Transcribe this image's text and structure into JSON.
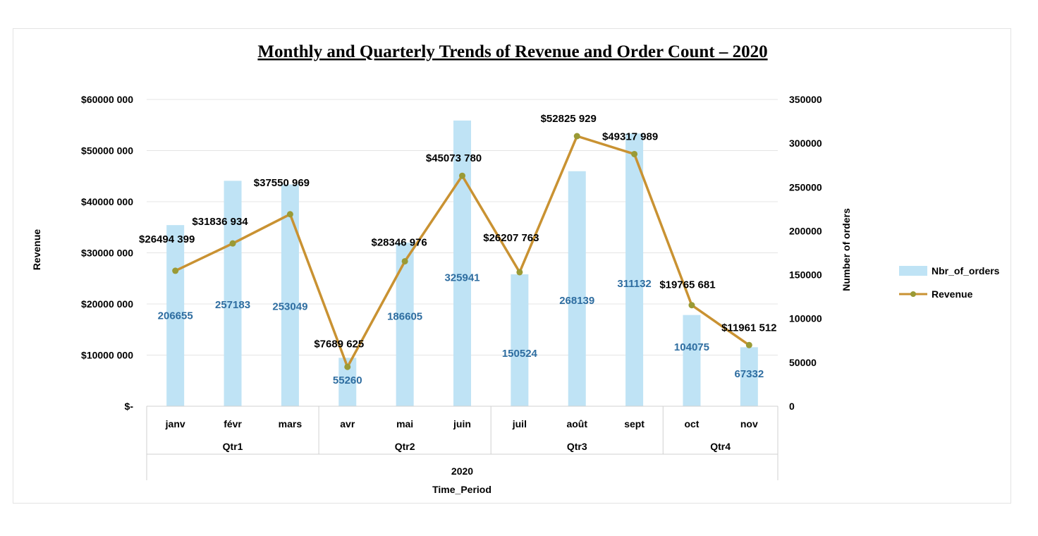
{
  "chart_data": {
    "type": "bar+line",
    "title": "Monthly and Quarterly Trends of Revenue and Order Count – 2020",
    "xlabel": "Time_Period",
    "ylabel_left": "Revenue",
    "ylabel_right": "Number of orders",
    "year": "2020",
    "quarters": [
      {
        "label": "Qtr1",
        "months": 3
      },
      {
        "label": "Qtr2",
        "months": 3
      },
      {
        "label": "Qtr3",
        "months": 3
      },
      {
        "label": "Qtr4",
        "months": 2
      }
    ],
    "categories": [
      "janv",
      "févr",
      "mars",
      "avr",
      "mai",
      "juin",
      "juil",
      "août",
      "sept",
      "oct",
      "nov"
    ],
    "left_ticks": [
      "$-",
      "$10000 000",
      "$20000 000",
      "$30000 000",
      "$40000 000",
      "$50000 000",
      "$60000 000"
    ],
    "right_ticks": [
      "0",
      "50000",
      "100000",
      "150000",
      "200000",
      "250000",
      "300000",
      "350000"
    ],
    "ylim_left": [
      0,
      60000000
    ],
    "ylim_right": [
      0,
      350000
    ],
    "series": [
      {
        "name": "Nbr_of_orders",
        "type": "bar",
        "axis": "right",
        "color": "#bfe3f5",
        "values": [
          206655,
          257183,
          253049,
          55260,
          186605,
          325941,
          150524,
          268139,
          311132,
          104075,
          67332
        ],
        "labels": [
          "206655",
          "257183",
          "253049",
          "55260",
          "186605",
          "325941",
          "150524",
          "268139",
          "311132",
          "104075",
          "67332"
        ]
      },
      {
        "name": "Revenue",
        "type": "line",
        "axis": "left",
        "color": "#c99232",
        "values": [
          26494399,
          31836934,
          37550969,
          7689625,
          28346976,
          45073780,
          26207763,
          52825929,
          49317989,
          19765681,
          11961512
        ],
        "labels": [
          "$26494 399",
          "$31836 934",
          "$37550 969",
          "$7689 625",
          "$28346 976",
          "$45073 780",
          "$26207 763",
          "$52825 929",
          "$49317 989",
          "$19765 681",
          "$11961 512"
        ]
      }
    ],
    "legend_position": "right",
    "grid": true
  }
}
